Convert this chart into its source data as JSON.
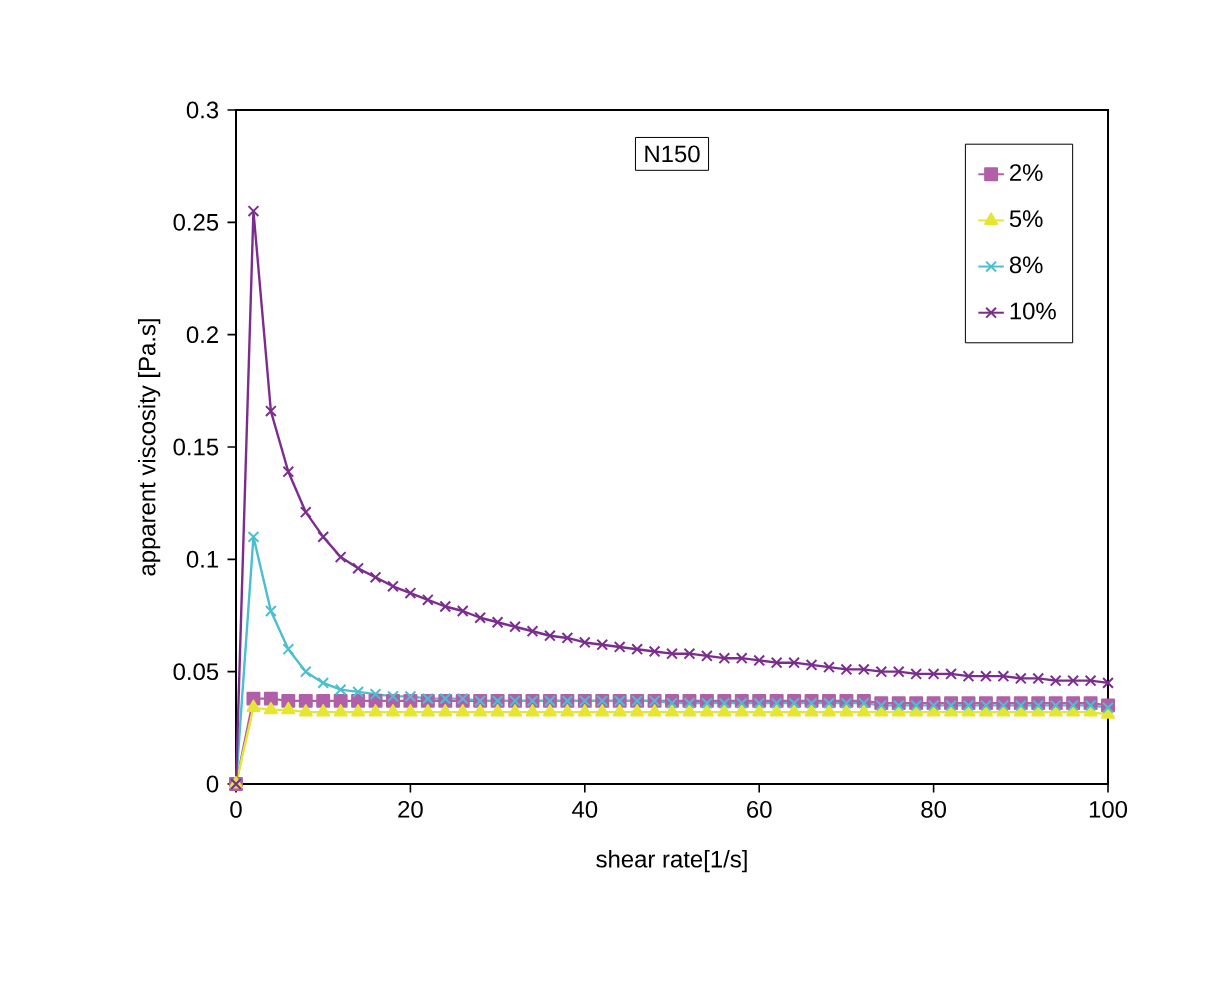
{
  "chart_data": {
    "type": "line",
    "xlabel": "shear rate[1/s]",
    "ylabel": "apparent viscosity [Pa.s]",
    "annotations": [
      "N150"
    ],
    "x": [
      0,
      2,
      4,
      6,
      8,
      10,
      12,
      14,
      16,
      18,
      20,
      22,
      24,
      26,
      28,
      30,
      32,
      34,
      36,
      38,
      40,
      42,
      44,
      46,
      48,
      50,
      52,
      54,
      56,
      58,
      60,
      62,
      64,
      66,
      68,
      70,
      72,
      74,
      76,
      78,
      80,
      82,
      84,
      86,
      88,
      90,
      92,
      94,
      96,
      98,
      100
    ],
    "series": [
      {
        "name": "2%",
        "color": "#b05fa8",
        "marker": "square",
        "values": [
          0,
          0.038,
          0.038,
          0.037,
          0.037,
          0.037,
          0.037,
          0.037,
          0.037,
          0.037,
          0.037,
          0.037,
          0.037,
          0.037,
          0.037,
          0.037,
          0.037,
          0.037,
          0.037,
          0.037,
          0.037,
          0.037,
          0.037,
          0.037,
          0.037,
          0.037,
          0.037,
          0.037,
          0.037,
          0.037,
          0.037,
          0.037,
          0.037,
          0.037,
          0.037,
          0.037,
          0.037,
          0.036,
          0.036,
          0.036,
          0.036,
          0.036,
          0.036,
          0.036,
          0.036,
          0.036,
          0.036,
          0.036,
          0.036,
          0.036,
          0.035
        ]
      },
      {
        "name": "5%",
        "color": "#e6e632",
        "marker": "triangle",
        "values": [
          0,
          0.034,
          0.033,
          0.033,
          0.032,
          0.032,
          0.032,
          0.032,
          0.032,
          0.032,
          0.032,
          0.032,
          0.032,
          0.032,
          0.032,
          0.032,
          0.032,
          0.032,
          0.032,
          0.032,
          0.032,
          0.032,
          0.032,
          0.032,
          0.032,
          0.032,
          0.032,
          0.032,
          0.032,
          0.032,
          0.032,
          0.032,
          0.032,
          0.032,
          0.032,
          0.032,
          0.032,
          0.032,
          0.032,
          0.032,
          0.032,
          0.032,
          0.032,
          0.032,
          0.032,
          0.032,
          0.032,
          0.032,
          0.032,
          0.032,
          0.031
        ]
      },
      {
        "name": "8%",
        "color": "#4bbfd0",
        "marker": "cross",
        "values": [
          0,
          0.11,
          0.077,
          0.06,
          0.05,
          0.045,
          0.042,
          0.041,
          0.04,
          0.039,
          0.039,
          0.038,
          0.038,
          0.038,
          0.037,
          0.037,
          0.037,
          0.037,
          0.037,
          0.037,
          0.037,
          0.037,
          0.037,
          0.037,
          0.037,
          0.036,
          0.036,
          0.036,
          0.036,
          0.036,
          0.036,
          0.036,
          0.036,
          0.036,
          0.036,
          0.036,
          0.036,
          0.035,
          0.035,
          0.035,
          0.035,
          0.035,
          0.035,
          0.035,
          0.035,
          0.035,
          0.035,
          0.035,
          0.035,
          0.035,
          0.034
        ]
      },
      {
        "name": "10%",
        "color": "#7b2d8e",
        "marker": "cross",
        "values": [
          0,
          0.255,
          0.166,
          0.139,
          0.121,
          0.11,
          0.101,
          0.096,
          0.092,
          0.088,
          0.085,
          0.082,
          0.079,
          0.077,
          0.074,
          0.072,
          0.07,
          0.068,
          0.066,
          0.065,
          0.063,
          0.062,
          0.061,
          0.06,
          0.059,
          0.058,
          0.058,
          0.057,
          0.056,
          0.056,
          0.055,
          0.054,
          0.054,
          0.053,
          0.052,
          0.051,
          0.051,
          0.05,
          0.05,
          0.049,
          0.049,
          0.049,
          0.048,
          0.048,
          0.048,
          0.047,
          0.047,
          0.046,
          0.046,
          0.046,
          0.045
        ]
      }
    ],
    "xlim": [
      0,
      100
    ],
    "ylim": [
      0,
      0.3
    ],
    "xticks": [
      0,
      20,
      40,
      60,
      80,
      100
    ],
    "yticks": [
      0,
      0.05,
      0.1,
      0.15,
      0.2,
      0.25,
      0.3
    ],
    "legend": "top right",
    "grid": false
  }
}
